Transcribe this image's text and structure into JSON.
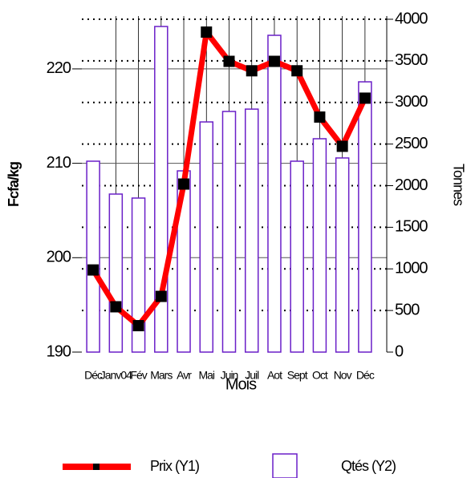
{
  "chart_data": {
    "type": "combo",
    "categories": [
      "Déc",
      "Janv04",
      "Fév",
      "Mars",
      "Avr",
      "Mai",
      "Juin",
      "Juil",
      "Aot",
      "Sept",
      "Oct",
      "Nov",
      "Déc"
    ],
    "series": [
      {
        "name": "Prix (Y1)",
        "type": "line",
        "axis": "y",
        "color": "#ff0000",
        "marker_color": "#000000",
        "values": [
          198.7,
          194.8,
          192.8,
          195.9,
          207.8,
          223.9,
          220.8,
          219.8,
          220.8,
          219.8,
          214.9,
          211.8,
          216.9
        ]
      },
      {
        "name": "Qtés (Y2)",
        "type": "bar",
        "axis": "y2",
        "color": "#6a1fc8",
        "values": [
          2294,
          1899,
          1851,
          3913,
          2178,
          2766,
          2892,
          2920,
          3807,
          2294,
          2564,
          2333,
          3248
        ]
      }
    ],
    "xlabel": "Mois",
    "ylabel": "Fcfa/kg",
    "y2label": "Tonnes",
    "ylim": [
      190,
      225.26
    ],
    "yticks": [
      190,
      200,
      210,
      220
    ],
    "y2lim": [
      0,
      4000
    ],
    "y2ticks": [
      0,
      500,
      1000,
      1500,
      2000,
      2500,
      3000,
      3500,
      4000
    ],
    "grid": true,
    "legend": "bottom"
  }
}
